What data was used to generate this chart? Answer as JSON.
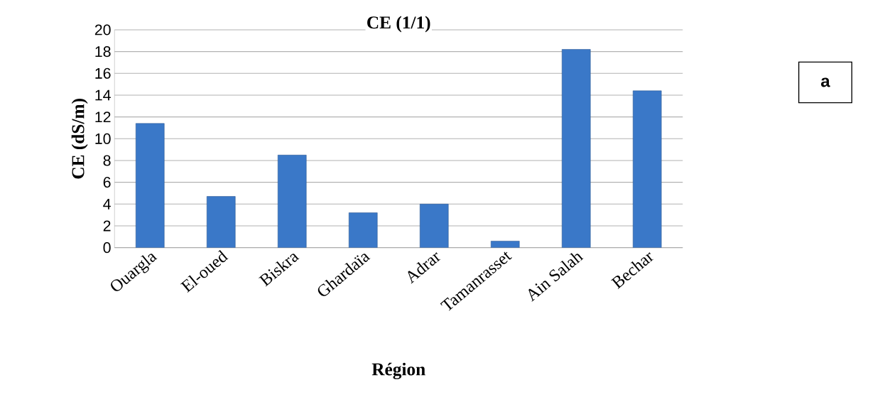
{
  "chart_data": {
    "type": "bar",
    "title": "CE (1/1)",
    "xlabel": "Région",
    "ylabel": "CE (dS/m)",
    "categories": [
      "Ouargla",
      "El-oued",
      "Biskra",
      "Ghardaïa",
      "Adrar",
      "Tamanrasset",
      "Ain Salah",
      "Bechar"
    ],
    "values": [
      11.4,
      4.7,
      8.5,
      3.2,
      4.0,
      0.6,
      18.2,
      14.4
    ],
    "color": "#3a78c8",
    "ylim": [
      0,
      20
    ],
    "yticks": [
      0,
      2,
      4,
      6,
      8,
      10,
      12,
      14,
      16,
      18,
      20
    ],
    "grid": "y",
    "annotations": [
      "a"
    ]
  }
}
